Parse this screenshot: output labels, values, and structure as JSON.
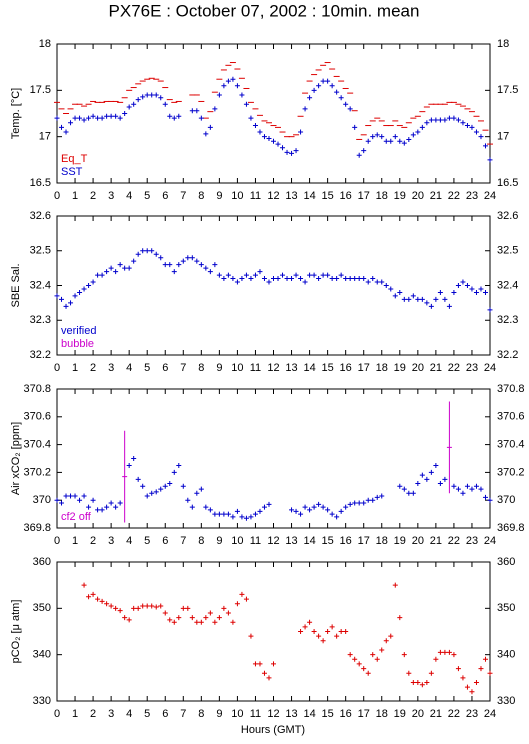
{
  "title": "PX76E : October 07, 2002 : 10min. mean",
  "xlabel": "Hours (GMT)",
  "chart_data": [
    {
      "type": "scatter",
      "ylabel": "Temp. [°C]",
      "xlim": [
        0,
        24
      ],
      "xticks": [
        0,
        1,
        2,
        3,
        4,
        5,
        6,
        7,
        8,
        9,
        10,
        11,
        12,
        13,
        14,
        15,
        16,
        17,
        18,
        19,
        20,
        21,
        22,
        23,
        24
      ],
      "ylim": [
        16.5,
        18
      ],
      "yticks": [
        16.5,
        17,
        17.5,
        18
      ],
      "x": [
        0,
        0.25,
        0.5,
        0.75,
        1,
        1.25,
        1.5,
        1.75,
        2,
        2.25,
        2.5,
        2.75,
        3,
        3.25,
        3.5,
        3.75,
        4,
        4.25,
        4.5,
        4.75,
        5,
        5.25,
        5.5,
        5.75,
        6,
        6.25,
        6.5,
        6.75,
        7,
        7.25,
        7.5,
        7.75,
        8,
        8.25,
        8.5,
        8.75,
        9,
        9.25,
        9.5,
        9.75,
        10,
        10.25,
        10.5,
        10.75,
        11,
        11.25,
        11.5,
        11.75,
        12,
        12.25,
        12.5,
        12.75,
        13,
        13.25,
        13.5,
        13.75,
        14,
        14.25,
        14.5,
        14.75,
        15,
        15.25,
        15.5,
        15.75,
        16,
        16.25,
        16.5,
        16.75,
        17,
        17.25,
        17.5,
        17.75,
        18,
        18.25,
        18.5,
        18.75,
        19,
        19.25,
        19.5,
        19.75,
        20,
        20.25,
        20.5,
        20.75,
        21,
        21.25,
        21.5,
        21.75,
        22,
        22.25,
        22.5,
        22.75,
        23,
        23.25,
        23.5,
        23.75,
        24
      ],
      "series": [
        {
          "name": "Eq_T",
          "color": "#dd0000",
          "marker": "-",
          "values": [
            17.37,
            17.3,
            17.25,
            17.3,
            17.35,
            17.35,
            17.33,
            17.35,
            17.38,
            17.37,
            17.37,
            17.38,
            17.38,
            17.38,
            17.37,
            17.42,
            17.5,
            17.53,
            17.57,
            17.6,
            17.62,
            17.63,
            17.62,
            17.6,
            17.53,
            17.4,
            17.37,
            17.38,
            null,
            null,
            17.45,
            17.45,
            17.38,
            17.2,
            17.27,
            17.48,
            17.62,
            17.72,
            17.77,
            17.8,
            17.73,
            17.63,
            17.52,
            17.37,
            17.3,
            17.23,
            17.17,
            17.15,
            17.12,
            17.1,
            17.05,
            17.0,
            17.0,
            17.02,
            17.22,
            17.47,
            17.6,
            17.67,
            17.72,
            17.77,
            17.8,
            17.73,
            17.65,
            17.6,
            17.52,
            17.47,
            17.28,
            16.97,
            17.02,
            17.12,
            17.17,
            17.2,
            17.17,
            17.12,
            17.12,
            17.17,
            17.12,
            17.1,
            17.15,
            17.2,
            17.22,
            17.27,
            17.32,
            17.35,
            17.35,
            17.35,
            17.35,
            17.37,
            17.37,
            17.35,
            17.33,
            17.3,
            17.27,
            17.22,
            17.17,
            17.07,
            16.92
          ]
        },
        {
          "name": "SST",
          "color": "#0000cc",
          "marker": "+",
          "values": [
            17.2,
            17.1,
            17.05,
            17.15,
            17.2,
            17.2,
            17.18,
            17.2,
            17.22,
            17.2,
            17.2,
            17.22,
            17.22,
            17.22,
            17.2,
            17.25,
            17.32,
            17.35,
            17.4,
            17.43,
            17.45,
            17.45,
            17.45,
            17.42,
            17.35,
            17.22,
            17.2,
            17.22,
            null,
            null,
            17.28,
            17.28,
            17.2,
            17.03,
            17.1,
            17.3,
            17.45,
            17.55,
            17.6,
            17.62,
            17.55,
            17.45,
            17.35,
            17.2,
            17.12,
            17.05,
            17.0,
            16.98,
            16.95,
            16.92,
            16.88,
            16.83,
            16.82,
            16.85,
            17.05,
            17.3,
            17.42,
            17.5,
            17.55,
            17.6,
            17.6,
            17.55,
            17.48,
            17.42,
            17.35,
            17.3,
            17.1,
            16.8,
            16.85,
            16.95,
            17.0,
            17.02,
            17.0,
            16.95,
            16.95,
            17.0,
            16.95,
            16.93,
            16.97,
            17.02,
            17.05,
            17.1,
            17.15,
            17.18,
            17.18,
            17.18,
            17.18,
            17.2,
            17.2,
            17.18,
            17.15,
            17.12,
            17.1,
            17.05,
            17.0,
            16.9,
            16.75
          ]
        }
      ]
    },
    {
      "type": "scatter",
      "ylabel": "SBE Sal.",
      "xlim": [
        0,
        24
      ],
      "xticks": [
        0,
        1,
        2,
        3,
        4,
        5,
        6,
        7,
        8,
        9,
        10,
        11,
        12,
        13,
        14,
        15,
        16,
        17,
        18,
        19,
        20,
        21,
        22,
        23,
        24
      ],
      "ylim": [
        32.2,
        32.6
      ],
      "yticks": [
        32.2,
        32.3,
        32.4,
        32.5,
        32.6
      ],
      "x": [
        0,
        0.25,
        0.5,
        0.75,
        1,
        1.25,
        1.5,
        1.75,
        2,
        2.25,
        2.5,
        2.75,
        3,
        3.25,
        3.5,
        3.75,
        4,
        4.25,
        4.5,
        4.75,
        5,
        5.25,
        5.5,
        5.75,
        6,
        6.25,
        6.5,
        6.75,
        7,
        7.25,
        7.5,
        7.75,
        8,
        8.25,
        8.5,
        8.75,
        9,
        9.25,
        9.5,
        9.75,
        10,
        10.25,
        10.5,
        10.75,
        11,
        11.25,
        11.5,
        11.75,
        12,
        12.25,
        12.5,
        12.75,
        13,
        13.25,
        13.5,
        13.75,
        14,
        14.25,
        14.5,
        14.75,
        15,
        15.25,
        15.5,
        15.75,
        16,
        16.25,
        16.5,
        16.75,
        17,
        17.25,
        17.5,
        17.75,
        18,
        18.25,
        18.5,
        18.75,
        19,
        19.25,
        19.5,
        19.75,
        20,
        20.25,
        20.5,
        20.75,
        21,
        21.25,
        21.5,
        21.75,
        22,
        22.25,
        22.5,
        22.75,
        23,
        23.25,
        23.5,
        23.75,
        24
      ],
      "series": [
        {
          "name": "verified",
          "color": "#0000cc",
          "marker": "+",
          "values": [
            32.37,
            32.36,
            32.34,
            32.35,
            32.37,
            32.38,
            32.39,
            32.4,
            32.41,
            32.43,
            32.43,
            32.44,
            32.45,
            32.44,
            32.46,
            32.45,
            32.45,
            32.47,
            32.49,
            32.5,
            32.5,
            32.5,
            32.49,
            32.48,
            32.46,
            32.46,
            32.44,
            32.46,
            32.47,
            32.48,
            32.48,
            32.47,
            32.46,
            32.45,
            32.44,
            32.46,
            32.43,
            32.42,
            32.43,
            32.42,
            32.41,
            32.42,
            32.43,
            32.42,
            32.43,
            32.44,
            32.42,
            32.41,
            32.42,
            32.42,
            32.43,
            32.42,
            32.42,
            32.43,
            32.42,
            32.41,
            32.43,
            32.43,
            32.42,
            32.43,
            32.43,
            32.42,
            32.42,
            32.43,
            32.42,
            32.42,
            32.42,
            32.42,
            32.42,
            32.41,
            32.42,
            32.41,
            32.41,
            32.4,
            32.39,
            32.37,
            32.38,
            32.36,
            32.36,
            32.37,
            32.36,
            32.36,
            32.35,
            32.34,
            32.36,
            32.38,
            32.36,
            32.34,
            32.38,
            32.4,
            32.41,
            32.4,
            32.39,
            32.38,
            32.39,
            32.38,
            32.33
          ]
        }
      ],
      "extra_legend": [
        {
          "name": "bubble",
          "color": "#cc00cc"
        }
      ]
    },
    {
      "type": "scatter",
      "ylabel": "Air xCO₂ [ppm]",
      "xlim": [
        0,
        24
      ],
      "xticks": [
        0,
        1,
        2,
        3,
        4,
        5,
        6,
        7,
        8,
        9,
        10,
        11,
        12,
        13,
        14,
        15,
        16,
        17,
        18,
        19,
        20,
        21,
        22,
        23,
        24
      ],
      "ylim": [
        369.8,
        370.8
      ],
      "yticks": [
        369.8,
        370,
        370.2,
        370.4,
        370.6,
        370.8
      ],
      "x": [
        0,
        0.25,
        0.5,
        0.75,
        1,
        1.25,
        1.5,
        1.75,
        2,
        2.25,
        2.5,
        2.75,
        3,
        3.25,
        3.5,
        3.75,
        4,
        4.25,
        4.5,
        4.75,
        5,
        5.25,
        5.5,
        5.75,
        6,
        6.25,
        6.5,
        6.75,
        7,
        7.25,
        7.5,
        7.75,
        8,
        8.25,
        8.5,
        8.75,
        9,
        9.25,
        9.5,
        9.75,
        10,
        10.25,
        10.5,
        10.75,
        11,
        11.25,
        11.5,
        11.75,
        12,
        12.25,
        12.5,
        12.75,
        13,
        13.25,
        13.5,
        13.75,
        14,
        14.25,
        14.5,
        14.75,
        15,
        15.25,
        15.5,
        15.75,
        16,
        16.25,
        16.5,
        16.75,
        17,
        17.25,
        17.5,
        17.75,
        18,
        18.25,
        18.5,
        18.75,
        19,
        19.25,
        19.5,
        19.75,
        20,
        20.25,
        20.5,
        20.75,
        21,
        21.25,
        21.5,
        21.75,
        22,
        22.25,
        22.5,
        22.75,
        23,
        23.25,
        23.5,
        23.75,
        24
      ],
      "series": [
        {
          "color": "#0000cc",
          "marker": "+",
          "values": [
            370,
            369.98,
            370.03,
            370.03,
            370.03,
            370,
            370.03,
            369.95,
            370,
            369.93,
            369.93,
            369.95,
            369.98,
            369.95,
            369.98,
            null,
            370.25,
            370.3,
            370.15,
            370.1,
            370.03,
            370.05,
            370.06,
            370.08,
            370.1,
            370.12,
            370.2,
            370.25,
            370.1,
            370,
            369.95,
            370.05,
            370.08,
            369.95,
            369.93,
            369.9,
            369.9,
            369.9,
            369.9,
            369.88,
            369.92,
            369.88,
            369.87,
            369.88,
            369.9,
            369.92,
            369.95,
            369.97,
            null,
            null,
            null,
            null,
            369.93,
            369.92,
            369.9,
            369.95,
            369.93,
            369.95,
            369.97,
            369.95,
            369.93,
            369.9,
            369.88,
            369.92,
            369.95,
            369.97,
            369.98,
            369.98,
            369.98,
            370,
            370,
            370.02,
            370.03,
            null,
            null,
            null,
            370.1,
            370.08,
            370.05,
            370.05,
            370.12,
            370.18,
            370.15,
            370.2,
            370.25,
            370.12,
            370.15,
            null,
            370.1,
            370.08,
            370.05,
            370.1,
            370.08,
            370.1,
            370.08,
            370.02,
            370
          ]
        },
        {
          "name": "cf2 off",
          "color": "#cc00cc",
          "marker": "+",
          "x": [
            3.75,
            21.75
          ],
          "values": [
            370.17,
            370.38
          ],
          "errors": [
            0.33,
            0.33
          ]
        }
      ]
    },
    {
      "type": "scatter",
      "ylabel": "pCO₂ [μ atm]",
      "xlim": [
        0,
        24
      ],
      "xticks": [
        0,
        1,
        2,
        3,
        4,
        5,
        6,
        7,
        8,
        9,
        10,
        11,
        12,
        13,
        14,
        15,
        16,
        17,
        18,
        19,
        20,
        21,
        22,
        23,
        24
      ],
      "ylim": [
        330,
        360
      ],
      "yticks": [
        330,
        340,
        350,
        360
      ],
      "x": [
        0,
        0.25,
        0.5,
        0.75,
        1,
        1.25,
        1.5,
        1.75,
        2,
        2.25,
        2.5,
        2.75,
        3,
        3.25,
        3.5,
        3.75,
        4,
        4.25,
        4.5,
        4.75,
        5,
        5.25,
        5.5,
        5.75,
        6,
        6.25,
        6.5,
        6.75,
        7,
        7.25,
        7.5,
        7.75,
        8,
        8.25,
        8.5,
        8.75,
        9,
        9.25,
        9.5,
        9.75,
        10,
        10.25,
        10.5,
        10.75,
        11,
        11.25,
        11.5,
        11.75,
        12,
        12.25,
        12.5,
        12.75,
        13,
        13.25,
        13.5,
        13.75,
        14,
        14.25,
        14.5,
        14.75,
        15,
        15.25,
        15.5,
        15.75,
        16,
        16.25,
        16.5,
        16.75,
        17,
        17.25,
        17.5,
        17.75,
        18,
        18.25,
        18.5,
        18.75,
        19,
        19.25,
        19.5,
        19.75,
        20,
        20.25,
        20.5,
        20.75,
        21,
        21.25,
        21.5,
        21.75,
        22,
        22.25,
        22.5,
        22.75,
        23,
        23.25,
        23.5,
        23.75,
        24
      ],
      "series": [
        {
          "color": "#dd0000",
          "marker": "+",
          "values": [
            null,
            null,
            null,
            null,
            null,
            null,
            355,
            352.5,
            353,
            352,
            351.5,
            351,
            350.5,
            350,
            349.5,
            348,
            347.5,
            350,
            350,
            350.5,
            350.5,
            350.5,
            350.3,
            350.5,
            349,
            347.5,
            347,
            348,
            350,
            350,
            348,
            347,
            347,
            348,
            349,
            347,
            348,
            350,
            349,
            347,
            351,
            353,
            352,
            344,
            338,
            338,
            336,
            335,
            338,
            null,
            null,
            null,
            null,
            null,
            345,
            346,
            347,
            345,
            344,
            343,
            345,
            346,
            344,
            345,
            345,
            340,
            339,
            338,
            337,
            336,
            340,
            339,
            341,
            343,
            344,
            355,
            348,
            340,
            336,
            334,
            334,
            333.5,
            334,
            336,
            339,
            340.5,
            340.5,
            340.5,
            340,
            337,
            335,
            333,
            332,
            334,
            337,
            339,
            336
          ]
        }
      ]
    }
  ]
}
